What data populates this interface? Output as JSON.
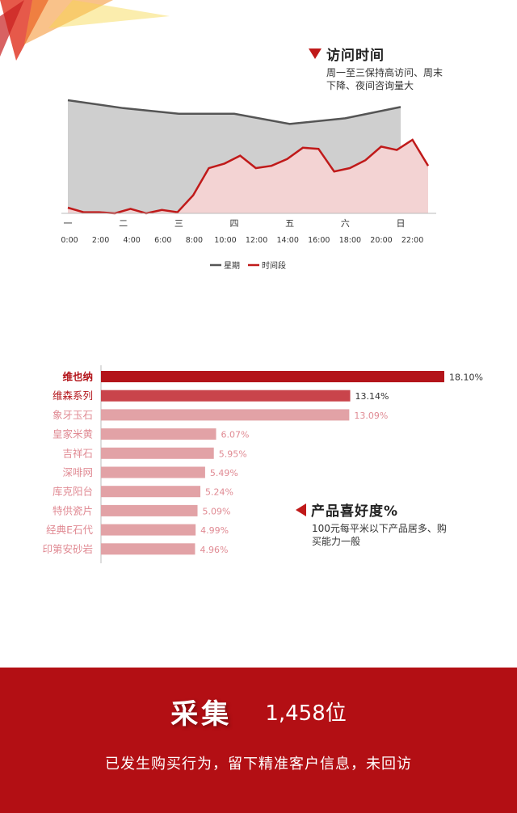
{
  "colors": {
    "accent": "#c01a1a",
    "line_gray": "#555555",
    "area_gray": "#cfcfcf",
    "area_red": "#f3d3d3",
    "footer_bg": "#b30f14"
  },
  "visit_section": {
    "title": "访问时间",
    "desc_line1": "周一至三保持高访问、周末",
    "desc_line2": "下降、夜间咨询量大"
  },
  "preference_section": {
    "title": "产品喜好度%",
    "desc_line1": "100元每平米以下产品居多、购",
    "desc_line2": "买能力一般"
  },
  "footer": {
    "label": "采集",
    "count": "1,458位",
    "note": "已发生购买行为，留下精准客户信息，未回访"
  },
  "chart_data": [
    {
      "type": "area",
      "title": "",
      "xlabel": "",
      "ylabel": "",
      "legend_position": "bottom",
      "weekday_ticks": [
        "一",
        "二",
        "三",
        "四",
        "五",
        "六",
        "日"
      ],
      "hour_ticks": [
        "0:00",
        "2:00",
        "4:00",
        "6:00",
        "8:00",
        "10:00",
        "12:00",
        "14:00",
        "16:00",
        "18:00",
        "20:00",
        "22:00"
      ],
      "ylim": [
        0,
        100
      ],
      "series": [
        {
          "name": "星期",
          "x": [
            "一",
            "二",
            "三",
            "四",
            "五",
            "六",
            "日"
          ],
          "values": [
            100,
            93,
            88,
            88,
            79,
            84,
            94
          ]
        },
        {
          "name": "时间段",
          "x": [
            "0:00",
            "1:00",
            "2:00",
            "3:00",
            "4:00",
            "5:00",
            "6:00",
            "7:00",
            "8:00",
            "9:00",
            "10:00",
            "11:00",
            "12:00",
            "13:00",
            "14:00",
            "15:00",
            "16:00",
            "17:00",
            "18:00",
            "19:00",
            "20:00",
            "21:00",
            "22:00",
            "23:00"
          ],
          "values": [
            5,
            1,
            1,
            0,
            4,
            0,
            3,
            1,
            16,
            40,
            44,
            51,
            40,
            42,
            48,
            58,
            57,
            37,
            40,
            47,
            59,
            56,
            65,
            42
          ]
        }
      ]
    },
    {
      "type": "bar",
      "orientation": "horizontal",
      "categories": [
        "维也纳",
        "维森系列",
        "象牙玉石",
        "皇家米黄",
        "吉祥石",
        "深啡网",
        "库克阳台",
        "特供瓷片",
        "经典E石代",
        "印第安砂岩"
      ],
      "values": [
        18.1,
        13.14,
        13.09,
        6.07,
        5.95,
        5.49,
        5.24,
        5.09,
        4.99,
        4.96
      ],
      "labels": [
        "18.10%",
        "13.14%",
        "13.09%",
        "6.07%",
        "5.95%",
        "5.49%",
        "5.24%",
        "5.09%",
        "4.99%",
        "4.96%"
      ],
      "xlim": [
        0,
        18.1
      ]
    }
  ]
}
